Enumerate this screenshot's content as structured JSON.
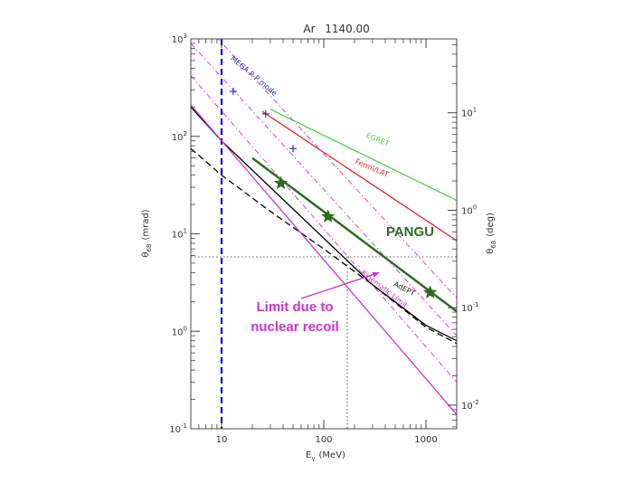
{
  "chart_data": {
    "type": "line",
    "title_left": "Ar",
    "title_right": "1140.00",
    "xlabel": "E",
    "xlabel_sub": "γ",
    "xlabel_unit": "(MeV)",
    "ylabel": "θ",
    "ylabel_sub": "68",
    "ylabel_unit": "(mrad)",
    "y2label": "θ",
    "y2label_sub": "68",
    "y2label_unit": "(deg)",
    "x_scale": "log",
    "y_scale": "log",
    "xlim": [
      5,
      2000
    ],
    "ylim": [
      0.1,
      1000
    ],
    "x_ticks": [
      {
        "value": 10,
        "label": "10"
      },
      {
        "value": 100,
        "label": "100"
      },
      {
        "value": 1000,
        "label": "1000"
      }
    ],
    "y_ticks": [
      {
        "exp": "-1",
        "value": 0.1
      },
      {
        "exp": "0",
        "value": 1
      },
      {
        "exp": "1",
        "value": 10
      },
      {
        "exp": "2",
        "value": 100
      },
      {
        "exp": "3",
        "value": 1000
      }
    ],
    "y2_ticks": [
      {
        "exp": "-2",
        "value": 0.01
      },
      {
        "exp": "-1",
        "value": 0.1
      },
      {
        "exp": "0",
        "value": 1
      },
      {
        "exp": "1",
        "value": 10
      }
    ],
    "series": [
      {
        "name": "EGRET",
        "color": "#44d644",
        "style": "solid",
        "width": 1.3,
        "x": [
          30,
          2000
        ],
        "y": [
          190,
          22
        ]
      },
      {
        "name": "Fermi/LAT",
        "color": "#ee2222",
        "style": "solid",
        "width": 1.3,
        "x": [
          25,
          2000
        ],
        "y": [
          180,
          8.5
        ]
      },
      {
        "name": "PANGU",
        "color": "#2e6b1f",
        "style": "solid",
        "width": 2.5,
        "x": [
          20,
          2000
        ],
        "y": [
          60,
          1.6
        ]
      },
      {
        "name": "AdEPT",
        "color": "#000000",
        "style": "solid",
        "width": 1.3,
        "x": [
          5,
          10,
          30,
          100,
          300,
          1000,
          2000
        ],
        "y": [
          200,
          90,
          30,
          9,
          3,
          1.15,
          0.8
        ]
      },
      {
        "color": "#000000",
        "style": "dash",
        "width": 1.3,
        "x": [
          5,
          10,
          30,
          100,
          300,
          1000,
          2000
        ],
        "y": [
          75,
          40,
          17,
          7,
          3,
          1.1,
          0.75
        ]
      },
      {
        "name": "Kinematic Limit",
        "color": "#cc33cc",
        "style": "solid",
        "width": 1.3,
        "x": [
          5,
          2000
        ],
        "y": [
          210,
          0.14
        ]
      },
      {
        "color": "#cc33cc",
        "style": "dashdot",
        "width": 0.9,
        "x": [
          5,
          2000
        ],
        "y": [
          420,
          0.3
        ]
      },
      {
        "color": "#cc33cc",
        "style": "dashdot",
        "width": 0.9,
        "x": [
          5,
          2000
        ],
        "y": [
          900,
          0.9
        ]
      },
      {
        "color": "#cc33cc",
        "style": "dashdot",
        "width": 0.9,
        "x": [
          5,
          2000
        ],
        "y": [
          2000,
          2.2
        ]
      }
    ],
    "markers": [
      {
        "name": "PANGU",
        "symbol": "star",
        "color": "#2e6b1f",
        "x": [
          38,
          110,
          1100
        ],
        "y": [
          33,
          15,
          2.5
        ]
      },
      {
        "name": "MEGA P-P mode",
        "symbol": "plus",
        "color": "#2233cc",
        "x": [
          13,
          27,
          50
        ],
        "y": [
          290,
          170,
          75
        ]
      }
    ],
    "reference_lines": [
      {
        "type": "vertical",
        "x": 10,
        "color": "#0000cc",
        "style": "dash",
        "width": 2.2
      },
      {
        "type": "vertical",
        "x": 170,
        "y_from": 0.1,
        "y_to": 5.8,
        "color": "#333333",
        "style": "dot",
        "width": 0.8
      },
      {
        "type": "horizontal",
        "y": 5.8,
        "x_from": 5,
        "x_to": 2000,
        "color": "#333333",
        "style": "dot",
        "width": 0.8
      }
    ],
    "labels": [
      {
        "text": "EGRET",
        "color": "#44d644",
        "x": 330,
        "y": 88,
        "angle": 23,
        "size": 8
      },
      {
        "text": "Fermi/LAT",
        "color": "#ee2222",
        "x": 290,
        "y": 45,
        "angle": 23,
        "size": 8
      },
      {
        "text": "MEGA P-P mode",
        "color": "#2233cc",
        "x": 20,
        "y": 400,
        "angle": 40,
        "size": 8
      },
      {
        "text": "AdEPT",
        "color": "#222222",
        "x": 600,
        "y": 2.6,
        "angle": 28,
        "size": 8
      },
      {
        "text": "Kinematic Limit",
        "color": "#cc33cc",
        "x": 380,
        "y": 2.6,
        "angle": 38,
        "size": 8
      },
      {
        "text": "PANGU",
        "color": "#2e6b1f",
        "x": 700,
        "y": 9.5,
        "angle": 0,
        "size": 15,
        "bold": true
      }
    ],
    "annotation": {
      "lines": [
        "Limit due to",
        "nuclear recoil"
      ],
      "color": "#cc33cc",
      "arrow_to": {
        "x": 350,
        "y": 4
      }
    }
  }
}
